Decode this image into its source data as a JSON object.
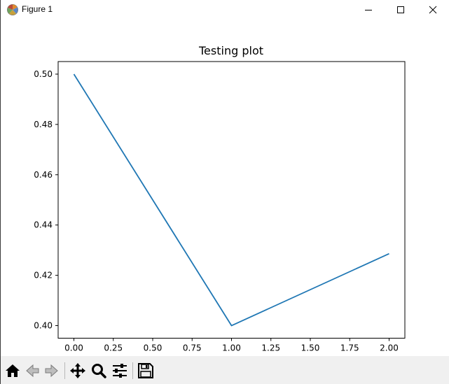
{
  "window": {
    "title": "Figure 1",
    "icons": {
      "app": "matplotlib-icon",
      "minimize": "minimize-icon",
      "maximize": "maximize-icon",
      "close": "close-icon"
    }
  },
  "toolbar": {
    "tools": [
      {
        "name": "home-icon",
        "label": "Home"
      },
      {
        "name": "back-arrow-icon",
        "label": "Back"
      },
      {
        "name": "forward-arrow-icon",
        "label": "Forward"
      },
      {
        "name": "pan-move-icon",
        "label": "Pan"
      },
      {
        "name": "zoom-magnifier-icon",
        "label": "Zoom"
      },
      {
        "name": "subplots-config-icon",
        "label": "Configure subplots"
      },
      {
        "name": "save-floppy-icon",
        "label": "Save"
      }
    ]
  },
  "chart_data": {
    "type": "line",
    "title": "Testing plot",
    "xlabel": "",
    "ylabel": "",
    "x": [
      0,
      1,
      2
    ],
    "series": [
      {
        "color": "#1f77b4",
        "values": [
          0.5,
          0.4,
          0.4286
        ]
      }
    ],
    "xlim": [
      -0.1,
      2.1
    ],
    "ylim": [
      0.395,
      0.505
    ],
    "xticks": [
      0.0,
      0.25,
      0.5,
      0.75,
      1.0,
      1.25,
      1.5,
      1.75,
      2.0
    ],
    "xtick_labels": [
      "0.00",
      "0.25",
      "0.50",
      "0.75",
      "1.00",
      "1.25",
      "1.50",
      "1.75",
      "2.00"
    ],
    "yticks": [
      0.4,
      0.42,
      0.44,
      0.46,
      0.48,
      0.5
    ],
    "ytick_labels": [
      "0.40",
      "0.42",
      "0.44",
      "0.46",
      "0.48",
      "0.50"
    ],
    "grid": false,
    "legend": "none"
  }
}
